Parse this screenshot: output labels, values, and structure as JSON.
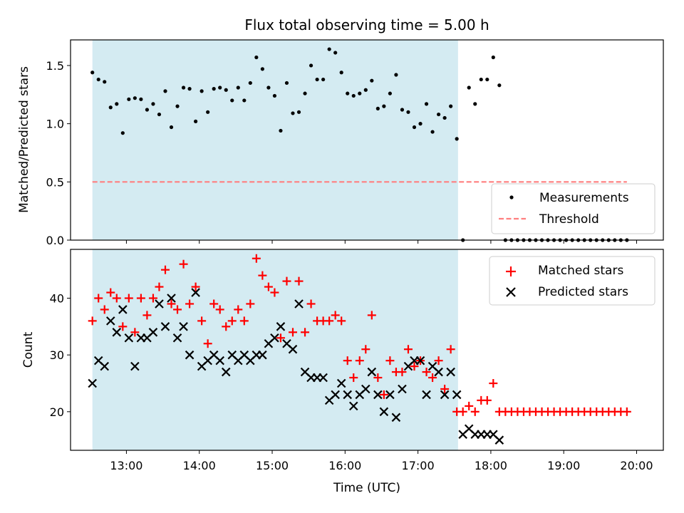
{
  "figure": {
    "title": "Flux total observing time = 5.00 h",
    "xlabel": "Time (UTC)"
  },
  "chart_data": [
    {
      "type": "scatter",
      "panel": "top",
      "title": "Flux total observing time = 5.00 h",
      "ylabel": "Matched/Predicted stars",
      "xlim": [
        "12:14",
        "20:22"
      ],
      "ylim": [
        0,
        1.72
      ],
      "yticks": [
        0.0,
        0.5,
        1.0,
        1.5
      ],
      "ytick_labels": [
        "0.0",
        "0.5",
        "1.0",
        "1.5"
      ],
      "shaded_span": {
        "start": "12:32",
        "end": "17:33",
        "color": "#add8e6"
      },
      "legend_position": "lower-right",
      "series": [
        {
          "name": "Measurements",
          "color": "#000000",
          "marker": "dot",
          "x": [
            "12:32",
            "12:37",
            "12:42",
            "12:47",
            "12:52",
            "12:57",
            "13:02",
            "13:07",
            "13:12",
            "13:17",
            "13:22",
            "13:27",
            "13:32",
            "13:37",
            "13:42",
            "13:47",
            "13:52",
            "13:57",
            "14:02",
            "14:07",
            "14:12",
            "14:17",
            "14:22",
            "14:27",
            "14:32",
            "14:37",
            "14:42",
            "14:47",
            "14:52",
            "14:57",
            "15:02",
            "15:07",
            "15:12",
            "15:17",
            "15:22",
            "15:27",
            "15:32",
            "15:37",
            "15:42",
            "15:47",
            "15:52",
            "15:57",
            "16:02",
            "16:07",
            "16:12",
            "16:17",
            "16:22",
            "16:27",
            "16:32",
            "16:37",
            "16:42",
            "16:47",
            "16:52",
            "16:57",
            "17:02",
            "17:07",
            "17:12",
            "17:17",
            "17:22",
            "17:27",
            "17:32",
            "17:37",
            "17:42",
            "17:47",
            "17:52",
            "17:57",
            "18:02",
            "18:07",
            "18:12",
            "18:17",
            "18:22",
            "18:27",
            "18:32",
            "18:37",
            "18:42",
            "18:47",
            "18:52",
            "18:57",
            "19:02",
            "19:07",
            "19:12",
            "19:17",
            "19:22",
            "19:27",
            "19:32",
            "19:37",
            "19:42",
            "19:47",
            "19:52"
          ],
          "y": [
            1.44,
            1.38,
            1.36,
            1.14,
            1.17,
            0.92,
            1.21,
            1.22,
            1.21,
            1.12,
            1.17,
            1.08,
            1.28,
            0.97,
            1.15,
            1.31,
            1.3,
            1.02,
            1.28,
            1.1,
            1.3,
            1.31,
            1.29,
            1.2,
            1.31,
            1.2,
            1.35,
            1.57,
            1.47,
            1.31,
            1.24,
            0.94,
            1.35,
            1.09,
            1.1,
            1.26,
            1.5,
            1.38,
            1.38,
            1.64,
            1.61,
            1.44,
            1.26,
            1.24,
            1.26,
            1.29,
            1.37,
            1.13,
            1.15,
            1.26,
            1.42,
            1.12,
            1.1,
            0.97,
            1.0,
            1.17,
            0.93,
            1.08,
            1.05,
            1.15,
            0.87,
            0.0,
            1.31,
            1.17,
            1.38,
            1.38,
            1.57,
            1.33,
            0.0,
            0.0,
            0.0,
            0.0,
            0.0,
            0.0,
            0.0,
            0.0,
            0.0,
            0.0,
            0.0,
            0.0,
            0.0,
            0.0,
            0.0,
            0.0,
            0.0,
            0.0,
            0.0,
            0.0,
            0.0
          ]
        },
        {
          "name": "Threshold",
          "color": "#ff7f7f",
          "line_style": "dashed",
          "x": [
            "12:32",
            "19:52"
          ],
          "y": [
            0.5,
            0.5
          ]
        }
      ]
    },
    {
      "type": "scatter",
      "panel": "bottom",
      "ylabel": "Count",
      "xlabel": "Time (UTC)",
      "xlim": [
        "12:14",
        "20:22"
      ],
      "ylim": [
        13.2,
        48.6
      ],
      "yticks": [
        20,
        30,
        40
      ],
      "ytick_labels": [
        "20",
        "30",
        "40"
      ],
      "xticks": [
        "13:00",
        "14:00",
        "15:00",
        "16:00",
        "17:00",
        "18:00",
        "19:00",
        "20:00"
      ],
      "xtick_labels": [
        "13:00",
        "14:00",
        "15:00",
        "16:00",
        "17:00",
        "18:00",
        "19:00",
        "20:00"
      ],
      "shaded_span": {
        "start": "12:32",
        "end": "17:33",
        "color": "#add8e6"
      },
      "legend_position": "upper-right",
      "series": [
        {
          "name": "Matched stars",
          "color": "#ff0000",
          "marker": "plus",
          "x": [
            "12:32",
            "12:37",
            "12:42",
            "12:47",
            "12:52",
            "12:57",
            "13:02",
            "13:07",
            "13:12",
            "13:17",
            "13:22",
            "13:27",
            "13:32",
            "13:37",
            "13:42",
            "13:47",
            "13:52",
            "13:57",
            "14:02",
            "14:07",
            "14:12",
            "14:17",
            "14:22",
            "14:27",
            "14:32",
            "14:37",
            "14:42",
            "14:47",
            "14:52",
            "14:57",
            "15:02",
            "15:07",
            "15:12",
            "15:17",
            "15:22",
            "15:27",
            "15:32",
            "15:37",
            "15:42",
            "15:47",
            "15:52",
            "15:57",
            "16:02",
            "16:07",
            "16:12",
            "16:17",
            "16:22",
            "16:27",
            "16:32",
            "16:37",
            "16:42",
            "16:47",
            "16:52",
            "16:57",
            "17:02",
            "17:07",
            "17:12",
            "17:17",
            "17:22",
            "17:27",
            "17:32",
            "17:37",
            "17:42",
            "17:47",
            "17:52",
            "17:57",
            "18:02",
            "18:07",
            "18:12",
            "18:17",
            "18:22",
            "18:27",
            "18:32",
            "18:37",
            "18:42",
            "18:47",
            "18:52",
            "18:57",
            "19:02",
            "19:07",
            "19:12",
            "19:17",
            "19:22",
            "19:27",
            "19:32",
            "19:37",
            "19:42",
            "19:47",
            "19:52"
          ],
          "y": [
            36,
            40,
            38,
            41,
            40,
            35,
            40,
            34,
            40,
            37,
            40,
            42,
            45,
            39,
            38,
            46,
            39,
            42,
            36,
            32,
            39,
            38,
            35,
            36,
            38,
            36,
            39,
            47,
            44,
            42,
            41,
            33,
            43,
            34,
            43,
            34,
            39,
            36,
            36,
            36,
            37,
            36,
            29,
            26,
            29,
            31,
            37,
            26,
            23,
            29,
            27,
            27,
            31,
            28,
            29,
            27,
            26,
            29,
            24,
            31,
            20,
            20,
            21,
            20,
            22,
            22,
            25,
            20,
            20,
            20,
            20,
            20,
            20,
            20,
            20,
            20,
            20,
            20,
            20,
            20,
            20,
            20,
            20,
            20,
            20,
            20,
            20,
            20,
            20
          ]
        },
        {
          "name": "Predicted stars",
          "color": "#000000",
          "marker": "x",
          "x": [
            "12:32",
            "12:37",
            "12:42",
            "12:47",
            "12:52",
            "12:57",
            "13:02",
            "13:07",
            "13:12",
            "13:17",
            "13:22",
            "13:27",
            "13:32",
            "13:37",
            "13:42",
            "13:47",
            "13:52",
            "13:57",
            "14:02",
            "14:07",
            "14:12",
            "14:17",
            "14:22",
            "14:27",
            "14:32",
            "14:37",
            "14:42",
            "14:47",
            "14:52",
            "14:57",
            "15:02",
            "15:07",
            "15:12",
            "15:17",
            "15:22",
            "15:27",
            "15:32",
            "15:37",
            "15:42",
            "15:47",
            "15:52",
            "15:57",
            "16:02",
            "16:07",
            "16:12",
            "16:17",
            "16:22",
            "16:27",
            "16:32",
            "16:37",
            "16:42",
            "16:47",
            "16:52",
            "16:57",
            "17:02",
            "17:07",
            "17:12",
            "17:17",
            "17:22",
            "17:27",
            "17:32",
            "17:37",
            "17:42",
            "17:47",
            "17:52",
            "17:57",
            "18:02",
            "18:07"
          ],
          "y": [
            25,
            29,
            28,
            36,
            34,
            38,
            33,
            28,
            33,
            33,
            34,
            39,
            35,
            40,
            33,
            35,
            30,
            41,
            28,
            29,
            30,
            29,
            27,
            30,
            29,
            30,
            29,
            30,
            30,
            32,
            33,
            35,
            32,
            31,
            39,
            27,
            26,
            26,
            26,
            22,
            23,
            25,
            23,
            21,
            23,
            24,
            27,
            23,
            20,
            23,
            19,
            24,
            28,
            29,
            29,
            23,
            28,
            27,
            23,
            27,
            23,
            16,
            17,
            16,
            16,
            16,
            16,
            15
          ]
        }
      ]
    }
  ]
}
